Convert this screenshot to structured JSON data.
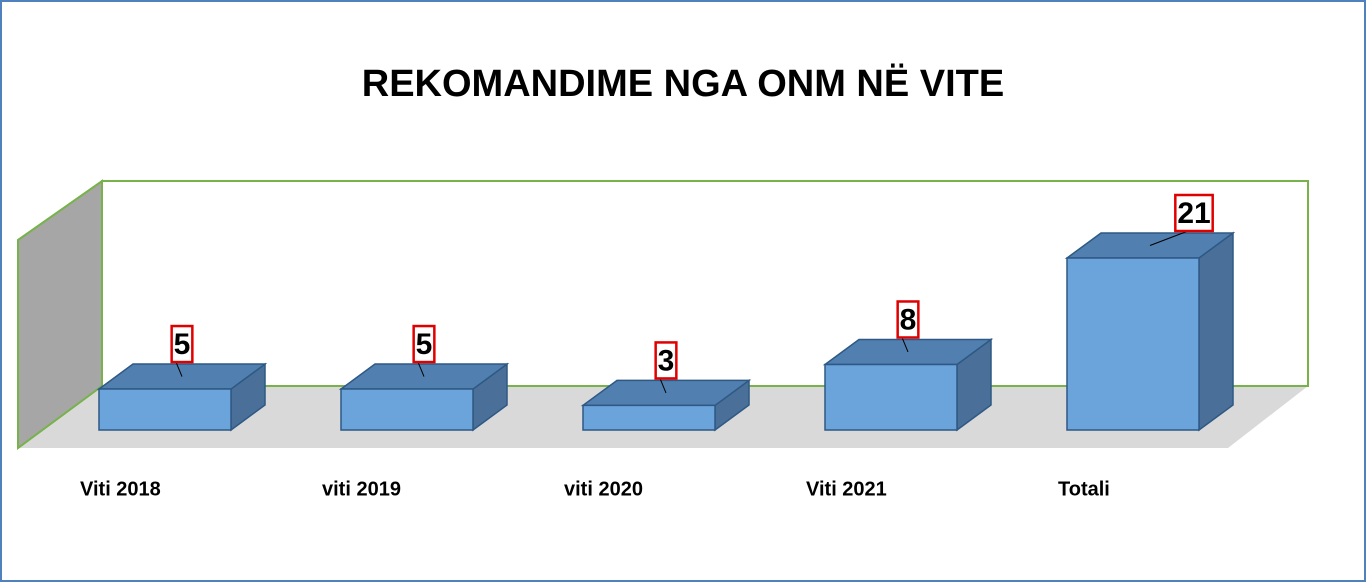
{
  "chart_data": {
    "type": "bar3d",
    "title": "REKOMANDIME NGA ONM NË VITE",
    "categories": [
      "Viti 2018",
      "viti 2019",
      "viti 2020",
      "Viti 2021",
      "Totali"
    ],
    "values": [
      5,
      5,
      3,
      8,
      21
    ],
    "color": "#5b9bd5"
  }
}
